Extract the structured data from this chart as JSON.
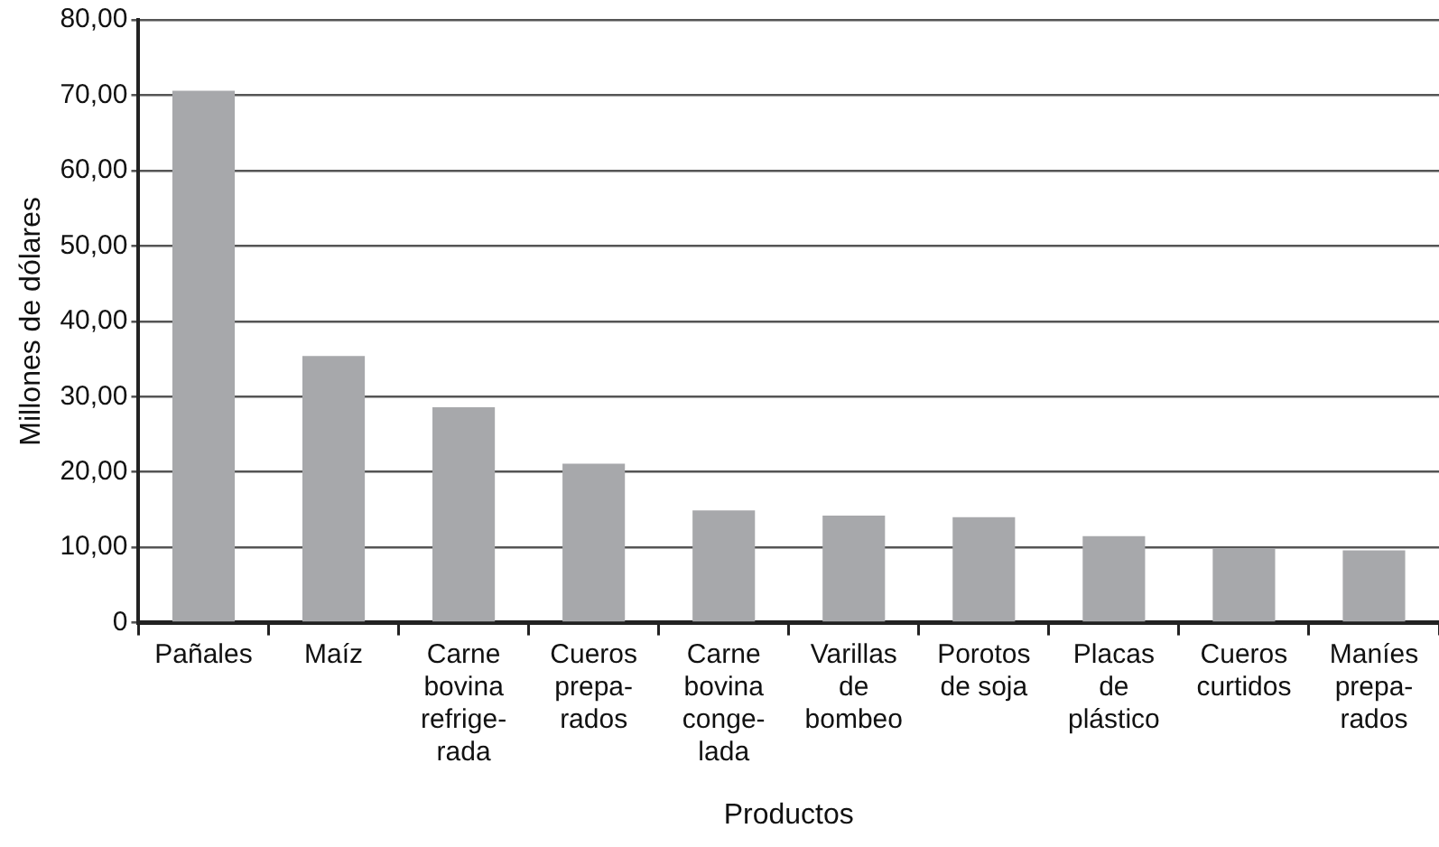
{
  "chart_data": {
    "type": "bar",
    "xlabel": "Productos",
    "ylabel": "Millones de dólares",
    "categories": [
      "Pañales",
      "Maíz",
      "Carne\nbovina\nrefrige-\nrada",
      "Cueros\nprepa-\nrados",
      "Carne\nbovina\nconge-\nlada",
      "Varillas\nde\nbombeo",
      "Porotos\nde soja",
      "Placas\nde\nplástico",
      "Cueros\ncurtidos",
      "Maníes\nprepa-\nrados"
    ],
    "values": [
      70.6,
      35.4,
      28.6,
      21.1,
      14.9,
      14.2,
      14.0,
      11.5,
      9.9,
      9.6
    ],
    "color": "#a7a8ab",
    "ylim": [
      0,
      80
    ],
    "yticks": [
      0,
      {
        "value": 10,
        "label": "10,00"
      },
      {
        "value": 20,
        "label": "20,00"
      },
      {
        "value": 30,
        "label": "30,00"
      },
      {
        "value": 40,
        "label": "40,00"
      },
      {
        "value": 50,
        "label": "50,00"
      },
      {
        "value": 60,
        "label": "60,00"
      },
      {
        "value": 70,
        "label": "70,00"
      },
      {
        "value": 80,
        "label": "80,00"
      }
    ],
    "grid": "y",
    "legend": false
  }
}
